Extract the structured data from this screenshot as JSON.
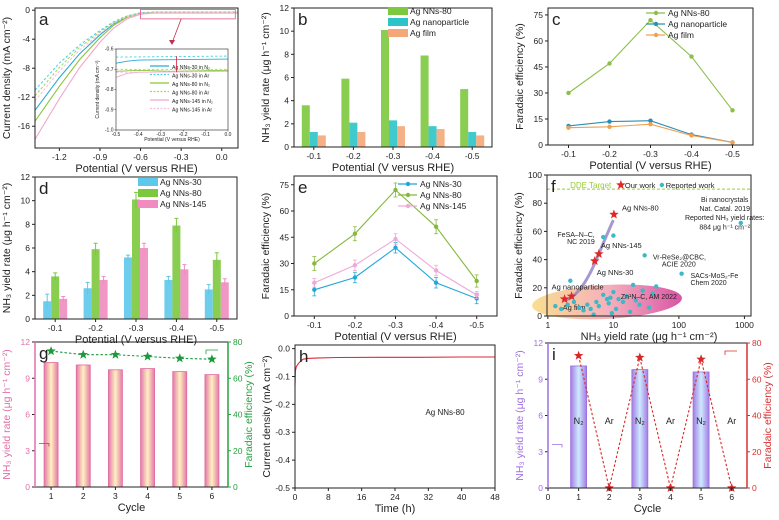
{
  "chart_data": [
    {
      "id": "a",
      "panel_label": "a",
      "type": "line",
      "xlabel": "Potential (V versus RHE)",
      "ylabel": "Current density (mA cm⁻²)",
      "xlim": [
        -1.38,
        0.12
      ],
      "ylim": [
        -19,
        0.3
      ],
      "xticks": [
        "-1.2",
        "-0.9",
        "-0.6",
        "-0.3",
        "0.0"
      ],
      "yticks": [
        "0",
        "-4",
        "-8",
        "-12",
        "-16"
      ],
      "series": [
        {
          "color": "#2aa9d8",
          "dash": false,
          "x": [
            -1.38,
            -1.2,
            -1.05,
            -0.9,
            -0.8,
            -0.7,
            -0.6,
            -0.5,
            0.12
          ],
          "y": [
            -13.8,
            -9.3,
            -6,
            -3.4,
            -1.9,
            -0.9,
            -0.4,
            -0.3,
            -0.3
          ]
        },
        {
          "color": "#4fd3e0",
          "dash": true,
          "x": [
            -1.38,
            -1.2,
            -1.05,
            -0.9,
            -0.8,
            -0.7,
            -0.6,
            -0.5,
            0.12
          ],
          "y": [
            -11,
            -7.3,
            -4.8,
            -2.8,
            -1.6,
            -0.8,
            -0.35,
            -0.25,
            -0.25
          ]
        },
        {
          "color": "#8cc43c",
          "dash": false,
          "x": [
            -1.38,
            -1.2,
            -1.05,
            -0.9,
            -0.8,
            -0.7,
            -0.6,
            -0.5,
            0.12
          ],
          "y": [
            -15.3,
            -10.5,
            -6.8,
            -3.8,
            -2.1,
            -1.0,
            -0.45,
            -0.35,
            -0.35
          ]
        },
        {
          "color": "#a6d46a",
          "dash": true,
          "x": [
            -1.38,
            -1.2,
            -1.05,
            -0.9,
            -0.8,
            -0.7,
            -0.6,
            -0.5,
            0.12
          ],
          "y": [
            -11.8,
            -7.9,
            -5.1,
            -3.0,
            -1.7,
            -0.85,
            -0.4,
            -0.3,
            -0.3
          ]
        },
        {
          "color": "#f0a8d0",
          "dash": false,
          "x": [
            -1.38,
            -1.2,
            -1.05,
            -0.9,
            -0.8,
            -0.7,
            -0.6,
            -0.5,
            0.12
          ],
          "y": [
            -17.8,
            -12.2,
            -7.9,
            -4.4,
            -2.5,
            -1.2,
            -0.55,
            -0.4,
            -0.4
          ]
        },
        {
          "color": "#f5c0dc",
          "dash": true,
          "x": [
            -1.38,
            -1.2,
            -1.05,
            -0.9,
            -0.8,
            -0.7,
            -0.6,
            -0.5,
            0.12
          ],
          "y": [
            -12.5,
            -8.4,
            -5.5,
            -3.2,
            -1.8,
            -0.9,
            -0.42,
            -0.32,
            -0.32
          ]
        }
      ]
    },
    {
      "id": "a_inset",
      "type": "line",
      "xlabel": "Potential (V versus RHE)",
      "ylabel": "Current density (mA cm⁻²)",
      "xlim": [
        -0.5,
        0.0
      ],
      "ylim": [
        -1.0,
        -0.6
      ],
      "xticks": [
        "-0.5",
        "-0.4",
        "-0.3",
        "-0.2",
        "-0.1",
        "0.0"
      ],
      "yticks": [
        "-0.6",
        "-0.7",
        "-0.8",
        "-0.9",
        "-1.0"
      ],
      "series": [
        {
          "name": "Ag NNs-30 in N₂",
          "color": "#2aa9d8",
          "dash": false,
          "x": [
            -0.5,
            -0.45,
            -0.4,
            0
          ],
          "y": [
            -0.67,
            -0.66,
            -0.655,
            -0.65
          ]
        },
        {
          "name": "Ag NNs-30 in Ar",
          "color": "#4fd3e0",
          "dash": true,
          "x": [
            -0.5,
            0
          ],
          "y": [
            -0.64,
            -0.635
          ]
        },
        {
          "name": "Ag NNs-80 in N₂",
          "color": "#8cc43c",
          "dash": false,
          "x": [
            -0.5,
            -0.4,
            -0.25,
            0
          ],
          "y": [
            -0.71,
            -0.705,
            -0.71,
            -0.705
          ]
        },
        {
          "name": "Ag NNs-80 in Ar",
          "color": "#a6d46a",
          "dash": true,
          "x": [
            -0.5,
            0
          ],
          "y": [
            -0.7,
            -0.7
          ]
        },
        {
          "name": "Ag NNs-145 in N₂",
          "color": "#f0a8d0",
          "dash": false,
          "x": [
            -0.5,
            -0.45,
            -0.4,
            0
          ],
          "y": [
            -0.74,
            -0.72,
            -0.715,
            -0.71
          ]
        },
        {
          "name": "Ag NNs-145 in Ar",
          "color": "#f5c0dc",
          "dash": true,
          "x": [
            -0.5,
            0
          ],
          "y": [
            -0.715,
            -0.71
          ]
        }
      ]
    },
    {
      "id": "b",
      "panel_label": "b",
      "type": "bar",
      "xlabel": "Potential (V versus RHE)",
      "ylabel": "NH₃ yield rate (μg h⁻¹ cm⁻²)",
      "categories": [
        "-0.1",
        "-0.2",
        "-0.3",
        "-0.4",
        "-0.5"
      ],
      "ylim": [
        0,
        12
      ],
      "yticks": [
        "0",
        "2",
        "4",
        "6",
        "8",
        "10",
        "12"
      ],
      "series": [
        {
          "name": "Ag NNs-80",
          "color": "#7cc83e",
          "kind": "bar",
          "values": [
            3.6,
            5.9,
            10.1,
            7.9,
            5.0
          ]
        },
        {
          "name": "Ag nanoparticle",
          "color": "#2cc4c8",
          "kind": "bar",
          "values": [
            1.3,
            2.1,
            2.3,
            1.8,
            1.3
          ]
        },
        {
          "name": "Ag film",
          "color": "#f4a878",
          "kind": "bar",
          "values": [
            1.0,
            1.3,
            1.8,
            1.55,
            1.0
          ]
        }
      ]
    },
    {
      "id": "c",
      "panel_label": "c",
      "type": "line",
      "xlabel": "Potential (V versus RHE)",
      "ylabel": "Faradaic efficiency (%)",
      "categories": [
        "-0.1",
        "-0.2",
        "-0.3",
        "-0.4",
        "-0.5"
      ],
      "ylim": [
        0,
        79
      ],
      "yticks": [
        "0",
        "15",
        "30",
        "45",
        "60",
        "75"
      ],
      "series": [
        {
          "name": "Ag NNs-80",
          "color": "#8cbf4a",
          "kind": "line",
          "values": [
            30,
            47,
            72,
            51,
            20
          ]
        },
        {
          "name": "Ag nanoparticle",
          "color": "#2a8fb5",
          "kind": "line",
          "values": [
            11,
            13.5,
            14,
            6,
            1.5
          ]
        },
        {
          "name": "Ag film",
          "color": "#f0a050",
          "kind": "line",
          "values": [
            10,
            10.5,
            12,
            5.5,
            1.5
          ]
        }
      ]
    },
    {
      "id": "d",
      "panel_label": "d",
      "type": "bar",
      "xlabel": "Potential (V versus RHE)",
      "ylabel": "NH₃ yield rate (μg h⁻¹ cm⁻²)",
      "categories": [
        "-0.1",
        "-0.2",
        "-0.3",
        "-0.4",
        "-0.5"
      ],
      "ylim": [
        0,
        12
      ],
      "yticks": [
        "0",
        "2",
        "4",
        "6",
        "8",
        "10",
        "12"
      ],
      "series": [
        {
          "name": "Ag NNs-30",
          "color": "#5cc8ea",
          "kind": "bar",
          "values": [
            1.5,
            2.6,
            5.2,
            3.3,
            2.5
          ],
          "errors": [
            0.6,
            0.5,
            0.2,
            0.3,
            0.4
          ]
        },
        {
          "name": "Ag NNs-80",
          "color": "#7cc83e",
          "kind": "bar",
          "values": [
            3.6,
            5.9,
            10.1,
            7.9,
            5.0
          ],
          "errors": [
            0.3,
            0.5,
            0.6,
            0.6,
            0.6
          ]
        },
        {
          "name": "Ag NNs-145",
          "color": "#f08cc0",
          "kind": "bar",
          "values": [
            1.7,
            3.3,
            6.0,
            4.2,
            3.1
          ],
          "errors": [
            0.2,
            0.3,
            0.4,
            0.4,
            0.3
          ]
        }
      ]
    },
    {
      "id": "e",
      "panel_label": "e",
      "type": "line",
      "xlabel": "Potential (V versus RHE)",
      "ylabel": "Faradaic efficiency (%)",
      "categories": [
        "-0.1",
        "-0.2",
        "-0.3",
        "-0.4",
        "-0.5"
      ],
      "ylim": [
        0,
        80
      ],
      "yticks": [
        "0",
        "15",
        "30",
        "45",
        "60",
        "75"
      ],
      "series": [
        {
          "name": "Ag NNs-30",
          "color": "#22a8d8",
          "kind": "line",
          "values": [
            15,
            22,
            39,
            19,
            10
          ],
          "errors": [
            3.5,
            3,
            3,
            3,
            3
          ]
        },
        {
          "name": "Ag NNs-80",
          "color": "#86b83e",
          "kind": "line",
          "values": [
            30,
            47,
            72,
            51,
            20
          ],
          "errors": [
            4,
            4,
            4,
            4,
            3.5
          ]
        },
        {
          "name": "Ag NNs-145",
          "color": "#f0a8d8",
          "kind": "line",
          "values": [
            19,
            29,
            44,
            26,
            12
          ],
          "errors": [
            2.5,
            3,
            3,
            3,
            2
          ]
        }
      ]
    },
    {
      "id": "f",
      "panel_label": "f",
      "type": "scatter",
      "xlabel": "NH₃ yield rate (μg h⁻¹ cm⁻²)",
      "ylabel": "Faradaic efficiency (%)",
      "xscale": "log",
      "xlim": [
        0.97,
        1260
      ],
      "ylim": [
        0,
        100
      ],
      "xticks": [
        "1",
        "10",
        "100",
        "1000"
      ],
      "yticks": [
        "0",
        "20",
        "40",
        "60",
        "80",
        "100"
      ],
      "target_label": "DDE Target",
      "target_value": 90,
      "target_color": "#9acd32",
      "series": [
        {
          "name": "Our work",
          "color": "#e02828",
          "marker": "star",
          "x": [
            1.8,
            2.3,
            5.2,
            6.0,
            10.2
          ],
          "y": [
            12,
            14,
            39,
            44,
            72
          ],
          "labels": [
            "Ag film",
            "Ag nanoparticle",
            "Ag NNs-30",
            "Ag NNs-145",
            "Ag NNs-80"
          ]
        },
        {
          "name": "Reported work",
          "color": "#3cb8c8",
          "marker": "circle",
          "x": [
            1.3,
            1.6,
            2,
            2.2,
            2.5,
            3,
            3.5,
            4,
            4.5,
            5,
            5.5,
            6,
            7,
            7,
            8,
            8.5,
            9,
            9.5,
            10,
            10,
            11,
            12,
            14,
            16,
            18,
            20,
            22,
            25,
            28,
            30,
            35,
            40,
            45,
            110,
            880
          ],
          "y": [
            7,
            5,
            8,
            25,
            10,
            6,
            4,
            8,
            5,
            1,
            10,
            7,
            15,
            56,
            12,
            9,
            13,
            2,
            17,
            57,
            5,
            12,
            10,
            14,
            3,
            22,
            11,
            8,
            18,
            43,
            6,
            16,
            21,
            30,
            66
          ]
        }
      ],
      "annotations": [
        "FeSA–N–C,",
        "NC 2019",
        "Vr-ReSe₂@CBC,",
        "ACIE 2020",
        "SACs-MoS₂-Fe",
        "Chem 2020",
        "Zn¹N–C, AM 2022",
        "Bi nanocrystals",
        "Nat. Catal. 2019",
        "Reported  NH₃ yield rates:",
        "884 μg h⁻¹ cm⁻²"
      ]
    },
    {
      "id": "g",
      "panel_label": "g",
      "type": "bar",
      "xlabel": "Cycle",
      "ylabel": "NH₃ yield rate (μg h⁻¹ cm⁻²)",
      "y2label": "Faradaic efficiency (%)",
      "categories": [
        "1",
        "2",
        "3",
        "4",
        "5",
        "6"
      ],
      "ylim": [
        0,
        12
      ],
      "yticks": [
        "0",
        "3",
        "6",
        "9",
        "12"
      ],
      "y2lim": [
        0,
        80
      ],
      "y2ticks": [
        "0",
        "20",
        "40",
        "60",
        "80"
      ],
      "ylabel_color": "#e070a8",
      "y2label_color": "#28a040",
      "series": [
        {
          "name": "NH₃ yield rate",
          "color": "#e06aa0",
          "kind": "bar",
          "values": [
            10.3,
            10.1,
            9.7,
            9.8,
            9.55,
            9.3
          ]
        },
        {
          "name": "Faradaic efficiency",
          "color": "#1a9a3a",
          "kind": "line",
          "marker": "star",
          "dash": true,
          "axis": "right",
          "values": [
            75,
            73,
            73,
            72,
            71,
            70.5
          ]
        }
      ]
    },
    {
      "id": "h",
      "panel_label": "h",
      "type": "line",
      "xlabel": "Time (h)",
      "ylabel": "Current density (mA cm⁻²)",
      "xlim": [
        0,
        48
      ],
      "ylim": [
        -0.5,
        0.013
      ],
      "xticks": [
        "0",
        "8",
        "16",
        "24",
        "32",
        "40",
        "48"
      ],
      "yticks": [
        "0.0",
        "-0.1",
        "-0.2",
        "-0.3",
        "-0.4",
        "-0.5"
      ],
      "annotation": "Ag NNs-80",
      "series": [
        {
          "color": "#e02838",
          "dash": false,
          "x": [
            0,
            0.1,
            0.3,
            0.6,
            1,
            1.5,
            2,
            3,
            5,
            10,
            20,
            30,
            40,
            48
          ],
          "y": [
            -0.13,
            -0.08,
            -0.065,
            -0.058,
            -0.05,
            -0.043,
            -0.038,
            -0.035,
            -0.034,
            -0.032,
            -0.031,
            -0.031,
            -0.03,
            -0.03
          ]
        }
      ]
    },
    {
      "id": "i",
      "panel_label": "i",
      "type": "bar",
      "xlabel": "Cycle",
      "ylabel": "NH₃ yield rate (μg h⁻¹ cm⁻²)",
      "y2label": "Faradaic efficiency (%)",
      "xlim": [
        0,
        6.5
      ],
      "xticks": [
        "0",
        "1",
        "2",
        "3",
        "4",
        "5",
        "6"
      ],
      "ylim": [
        0,
        12
      ],
      "yticks": [
        "0",
        "3",
        "6",
        "9",
        "12"
      ],
      "y2lim": [
        0,
        80
      ],
      "y2ticks": [
        "0",
        "20",
        "40",
        "60",
        "80"
      ],
      "ylabel_color": "#a070e0",
      "y2label_color": "#d83030",
      "x": [
        1,
        2,
        3,
        4,
        5,
        6
      ],
      "gas_labels": [
        "N₂",
        "Ar",
        "N₂",
        "Ar",
        "N₂",
        "Ar"
      ],
      "series": [
        {
          "name": "NH₃ yield rate",
          "color": "#9a6ee0",
          "kind": "bar",
          "values": [
            10.1,
            0,
            9.8,
            0,
            9.6,
            0
          ]
        },
        {
          "name": "Faradaic efficiency",
          "color": "#d82828",
          "kind": "line",
          "marker": "star",
          "dash": true,
          "axis": "right",
          "values": [
            73,
            0,
            72,
            0,
            71,
            0
          ]
        }
      ]
    }
  ]
}
